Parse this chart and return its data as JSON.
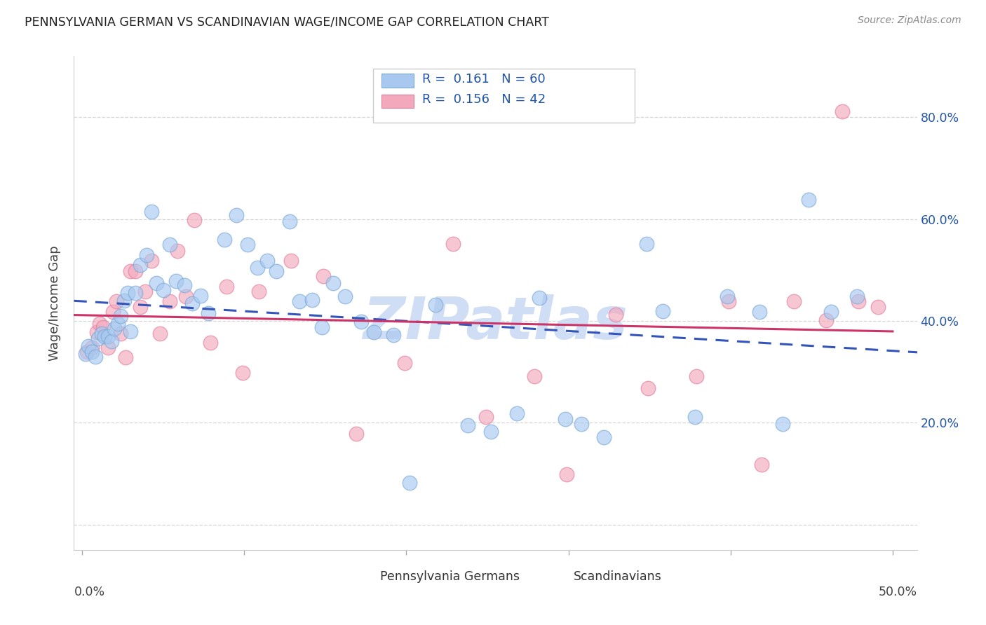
{
  "title": "PENNSYLVANIA GERMAN VS SCANDINAVIAN WAGE/INCOME GAP CORRELATION CHART",
  "source": "Source: ZipAtlas.com",
  "ylabel": "Wage/Income Gap",
  "blue_color": "#A8C8F0",
  "pink_color": "#F4A8BC",
  "blue_edge_color": "#7AAAD8",
  "pink_edge_color": "#E080A0",
  "blue_line_color": "#3355BB",
  "pink_line_color": "#CC3366",
  "watermark_color": "#D0DEF5",
  "legend_text_color": "#2255AA",
  "xlim": [
    -0.005,
    0.515
  ],
  "ylim": [
    -0.05,
    0.92
  ],
  "yticks": [
    0.0,
    0.2,
    0.4,
    0.6,
    0.8
  ],
  "ytick_labels": [
    "",
    "20.0%",
    "40.0%",
    "60.0%",
    "80.0%"
  ],
  "blue_r": "0.161",
  "blue_n": "60",
  "pink_r": "0.156",
  "pink_n": "42",
  "blue_x": [
    0.002,
    0.004,
    0.006,
    0.008,
    0.01,
    0.012,
    0.014,
    0.016,
    0.018,
    0.02,
    0.022,
    0.024,
    0.026,
    0.028,
    0.03,
    0.033,
    0.036,
    0.04,
    0.043,
    0.046,
    0.05,
    0.054,
    0.058,
    0.063,
    0.068,
    0.073,
    0.078,
    0.088,
    0.095,
    0.102,
    0.108,
    0.114,
    0.12,
    0.128,
    0.134,
    0.142,
    0.148,
    0.155,
    0.162,
    0.172,
    0.18,
    0.192,
    0.202,
    0.218,
    0.238,
    0.252,
    0.268,
    0.282,
    0.298,
    0.308,
    0.322,
    0.348,
    0.358,
    0.378,
    0.398,
    0.418,
    0.432,
    0.448,
    0.462,
    0.478
  ],
  "blue_y": [
    0.335,
    0.35,
    0.34,
    0.33,
    0.365,
    0.375,
    0.37,
    0.37,
    0.36,
    0.385,
    0.395,
    0.41,
    0.44,
    0.455,
    0.38,
    0.455,
    0.51,
    0.53,
    0.615,
    0.475,
    0.46,
    0.55,
    0.478,
    0.47,
    0.435,
    0.45,
    0.415,
    0.56,
    0.608,
    0.55,
    0.505,
    0.518,
    0.498,
    0.595,
    0.438,
    0.442,
    0.388,
    0.475,
    0.448,
    0.398,
    0.378,
    0.372,
    0.082,
    0.432,
    0.195,
    0.182,
    0.218,
    0.446,
    0.208,
    0.198,
    0.172,
    0.552,
    0.42,
    0.212,
    0.448,
    0.418,
    0.198,
    0.638,
    0.418,
    0.448
  ],
  "pink_x": [
    0.003,
    0.006,
    0.009,
    0.011,
    0.013,
    0.016,
    0.019,
    0.021,
    0.024,
    0.027,
    0.03,
    0.033,
    0.036,
    0.039,
    0.043,
    0.048,
    0.054,
    0.059,
    0.064,
    0.069,
    0.079,
    0.089,
    0.099,
    0.109,
    0.129,
    0.149,
    0.169,
    0.199,
    0.229,
    0.249,
    0.279,
    0.299,
    0.329,
    0.349,
    0.379,
    0.399,
    0.419,
    0.439,
    0.459,
    0.469,
    0.479,
    0.491
  ],
  "pink_y": [
    0.34,
    0.348,
    0.378,
    0.395,
    0.388,
    0.348,
    0.418,
    0.438,
    0.375,
    0.328,
    0.498,
    0.498,
    0.428,
    0.458,
    0.518,
    0.375,
    0.438,
    0.538,
    0.448,
    0.598,
    0.358,
    0.468,
    0.298,
    0.458,
    0.518,
    0.488,
    0.178,
    0.318,
    0.552,
    0.212,
    0.292,
    0.098,
    0.412,
    0.268,
    0.292,
    0.438,
    0.118,
    0.438,
    0.402,
    0.812,
    0.438,
    0.428
  ],
  "point_size": 220
}
